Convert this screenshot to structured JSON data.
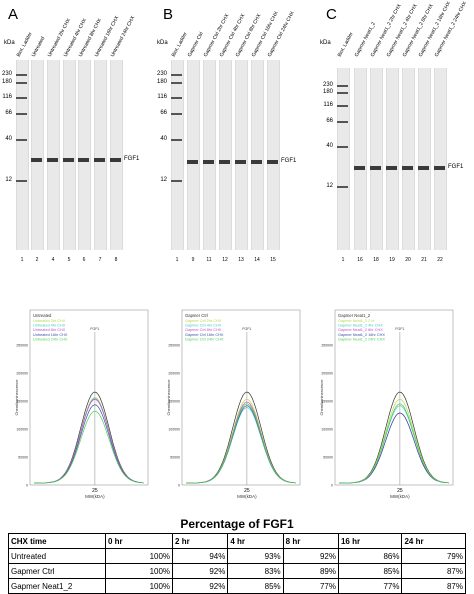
{
  "blots": [
    {
      "letter": "A",
      "kda": "kDa",
      "markers": [
        "230",
        "180",
        "116",
        "66",
        "40",
        "12"
      ],
      "lanes": [
        "Biot. Ladder",
        "Untreated",
        "Untreated 2hr CHX",
        "Untreated 4hr CHX",
        "Untreated 8hr CHX",
        "Untreated 16hr CHX",
        "Untreated 24hr CHX"
      ],
      "lane_numbers": [
        "1",
        "2",
        "4",
        "5",
        "6",
        "7",
        "8"
      ],
      "band_label": "FGF1"
    },
    {
      "letter": "B",
      "kda": "kDa",
      "markers": [
        "230",
        "180",
        "116",
        "66",
        "40",
        "12"
      ],
      "lanes": [
        "Biot. Ladder",
        "Gapmer Ctrl",
        "Gapmer Ctrl 2hr CHX",
        "Gapmer Ctrl 4hr CHX",
        "Gapmer Ctrl 8hr CHX",
        "Gapmer Ctrl 16hr CHX",
        "Gapmer Ctrl 24hr CHX"
      ],
      "lane_numbers": [
        "1",
        "9",
        "11",
        "12",
        "13",
        "14",
        "15"
      ],
      "band_label": "FGF1"
    },
    {
      "letter": "C",
      "kda": "kDa",
      "markers": [
        "230",
        "180",
        "116",
        "66",
        "40",
        "12"
      ],
      "lanes": [
        "Biot. Ladder",
        "Gapmer Neat1_2",
        "Gapmer Neat1_2 2hr CHX",
        "Gapmer Neat1_2 4hr CHX",
        "Gapmer Neat1_2 8hr CHX",
        "Gapmer Neat1_2 16hr CHX",
        "Gapmer Neat1_2 24hr CHX"
      ],
      "lane_numbers": [
        "1",
        "16",
        "18",
        "19",
        "20",
        "21",
        "22"
      ],
      "band_label": "FGF1"
    }
  ],
  "electropherograms": [
    {
      "legend_title": "Untreated",
      "legend": [
        "Untreated 2hr CHX",
        "Untreated 4hr CHX",
        "Untreated 8hr CHX",
        "Untreated 16hr CHX",
        "Untreated 24hr CHX"
      ],
      "peak_label": "FGF1",
      "ylabel": "Chemiluminescence",
      "xlabel": "MW(kDA)",
      "xtick": "25",
      "yticks": [
        "0",
        "50000",
        "100000",
        "150000",
        "200000",
        "250000"
      ],
      "peaks": [
        1.0,
        0.94,
        0.93,
        0.92,
        0.86,
        0.79
      ]
    },
    {
      "legend_title": "Gapmer Ctrl",
      "legend": [
        "Gapmer Ctrl 2hr CHX",
        "Gapmer Ctrl 4hr CHX",
        "Gapmer Ctrl 8hr CHX",
        "Gapmer Ctrl 16hr CHX",
        "Gapmer Ctrl 24hr CHX"
      ],
      "peak_label": "FGF1",
      "ylabel": "Chemiluminescence",
      "xlabel": "MW(kDA)",
      "xtick": "25",
      "yticks": [
        "0",
        "50000",
        "100000",
        "150000",
        "200000",
        "250000"
      ],
      "peaks": [
        1.0,
        0.92,
        0.83,
        0.89,
        0.85,
        0.87
      ]
    },
    {
      "legend_title": "Gapmer Neat1_2",
      "legend": [
        "Gapmer Neat1_2 2 hr",
        "Gapmer Neat1_2 4hr CHX",
        "Gapmer Neat1_2 8hr CHX",
        "Gapmer Neat1_2 16hr CHX",
        "Gapmer Neat1_2 24hr CHX"
      ],
      "peak_label": "FGF1",
      "ylabel": "Chemiluminescence",
      "xlabel": "MW(kDA)",
      "xtick": "25",
      "yticks": [
        "0",
        "50000",
        "100000",
        "150000",
        "200000",
        "250000"
      ],
      "peaks": [
        1.0,
        0.92,
        0.85,
        0.77,
        0.77,
        0.87
      ]
    }
  ],
  "series_colors": [
    "#333333",
    "#b8d84a",
    "#41c8c8",
    "#c84fc8",
    "#3a4ea8",
    "#4fd04f"
  ],
  "table": {
    "title": "Percentage of FGF1",
    "headers": [
      "CHX time",
      "0 hr",
      "2 hr",
      "4 hr",
      "8 hr",
      "16 hr",
      "24 hr"
    ],
    "rows": [
      [
        "Untreated",
        "100%",
        "94%",
        "93%",
        "92%",
        "86%",
        "79%"
      ],
      [
        "Gapmer Ctrl",
        "100%",
        "92%",
        "83%",
        "89%",
        "85%",
        "87%"
      ],
      [
        "Gapmer Neat1_2",
        "100%",
        "92%",
        "85%",
        "77%",
        "77%",
        "87%"
      ]
    ]
  },
  "chart_data": {
    "type": "table",
    "title": "Percentage of FGF1",
    "categories": [
      "0 hr",
      "2 hr",
      "4 hr",
      "8 hr",
      "16 hr",
      "24 hr"
    ],
    "xlabel": "CHX time",
    "series": [
      {
        "name": "Untreated",
        "values": [
          100,
          94,
          93,
          92,
          86,
          79
        ]
      },
      {
        "name": "Gapmer Ctrl",
        "values": [
          100,
          92,
          83,
          89,
          85,
          87
        ]
      },
      {
        "name": "Gapmer Neat1_2",
        "values": [
          100,
          92,
          85,
          77,
          77,
          87
        ]
      }
    ]
  }
}
